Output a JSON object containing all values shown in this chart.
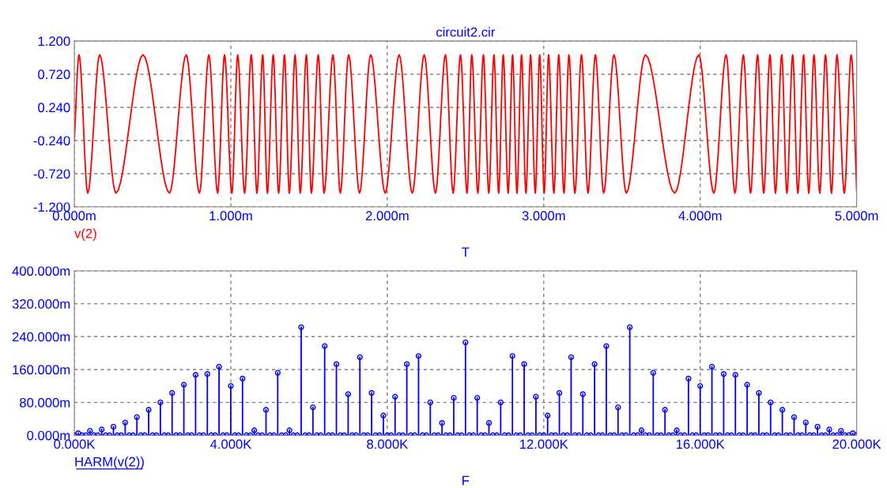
{
  "chart_data": [
    {
      "type": "line",
      "title": "circuit2.cir",
      "xlabel": "T",
      "grid": true,
      "x": [
        0,
        0.03,
        0.086,
        0.162,
        0.266,
        0.439,
        0.608,
        0.715,
        0.8,
        0.86,
        0.916,
        0.96,
        1.007,
        1.044,
        1.088,
        1.131,
        1.167,
        1.204,
        1.234,
        1.271,
        1.306,
        1.343,
        1.374,
        1.411,
        1.444,
        1.483,
        1.515,
        1.559,
        1.596,
        1.653,
        1.7,
        1.753,
        1.823,
        1.894,
        1.987,
        2.076,
        2.16,
        2.236,
        2.308,
        2.372,
        2.421,
        2.468,
        2.51,
        2.54,
        2.579,
        2.614,
        2.649,
        2.682,
        2.712,
        2.741,
        2.773,
        2.801,
        2.829,
        2.858,
        2.886,
        2.916,
        2.946,
        2.974,
        3.003,
        3.031,
        3.065,
        3.096,
        3.129,
        3.161,
        3.199,
        3.241,
        3.283,
        3.33,
        3.383,
        3.449,
        3.528,
        3.65,
        3.837,
        3.991,
        4.087,
        4.166,
        4.222,
        4.276,
        4.322,
        4.367,
        4.406,
        4.446,
        4.481,
        4.521,
        4.554,
        4.591,
        4.624,
        4.661,
        4.694,
        4.727,
        4.764,
        4.801,
        4.839,
        4.874,
        4.921,
        4.965,
        5.0
      ],
      "series": [
        {
          "name": "v(2)",
          "color": "#ff0000",
          "values": [
            -0.24,
            1,
            -1,
            1,
            -1,
            1,
            -1,
            1,
            -1,
            1,
            -1,
            1,
            -1,
            1,
            -1,
            1,
            -1,
            1,
            -1,
            1,
            -1,
            1,
            -1,
            1,
            -1,
            1,
            -1,
            1,
            -1,
            1,
            -1,
            1,
            -1,
            1,
            -1,
            1,
            -1,
            1,
            -1,
            1,
            -1,
            1,
            -1,
            1,
            -1,
            1,
            -1,
            1,
            -1,
            1,
            -1,
            1,
            -1,
            1,
            -1,
            1,
            -1,
            1,
            -1,
            1,
            -1,
            1,
            -1,
            1,
            -1,
            1,
            -1,
            1,
            -1,
            1,
            -1,
            1,
            -1,
            1,
            -1,
            1,
            -1,
            1,
            -1,
            1,
            -1,
            1,
            -1,
            1,
            -1,
            1,
            -1,
            1,
            -1,
            1,
            -1,
            1,
            -1,
            1,
            -1,
            1,
            -0.96
          ]
        }
      ],
      "xlim": [
        0,
        5
      ],
      "xticks": [
        {
          "value": 0,
          "label": "0.000m"
        },
        {
          "value": 1,
          "label": "1.000m"
        },
        {
          "value": 2,
          "label": "2.000m"
        },
        {
          "value": 3,
          "label": "3.000m"
        },
        {
          "value": 4,
          "label": "4.000m"
        },
        {
          "value": 5,
          "label": "5.000m"
        }
      ],
      "ylim": [
        -1.2,
        1.2
      ],
      "yticks": [
        {
          "value": -1.2,
          "label": "-1.200"
        },
        {
          "value": -0.72,
          "label": "-0.720"
        },
        {
          "value": -0.24,
          "label": "-0.240"
        },
        {
          "value": 0.24,
          "label": "0.240"
        },
        {
          "value": 0.72,
          "label": "0.720"
        },
        {
          "value": 1.2,
          "label": "1.200"
        }
      ]
    },
    {
      "type": "lollipop",
      "xlabel": "F",
      "grid": true,
      "marker": "circle",
      "x": [
        0,
        0.1,
        0.2,
        0.3,
        0.4,
        0.5,
        0.6,
        0.7,
        0.8,
        0.9,
        1.0,
        1.1,
        1.2,
        1.3,
        1.4,
        1.5,
        1.6,
        1.7,
        1.8,
        1.9,
        2.0,
        2.1,
        2.2,
        2.3,
        2.4,
        2.5,
        2.6,
        2.7,
        2.8,
        2.9,
        3.0,
        3.1,
        3.2,
        3.3,
        3.4,
        3.5,
        3.6,
        3.7,
        3.8,
        3.9,
        4.0,
        4.1,
        4.2,
        4.3,
        4.4,
        4.5,
        4.6,
        4.7,
        4.8,
        4.9,
        5.0,
        5.1,
        5.2,
        5.3,
        5.4,
        5.5,
        5.6,
        5.7,
        5.8,
        5.9,
        6.0,
        6.1,
        6.2,
        6.3,
        6.4,
        6.5,
        6.6,
        6.7,
        6.8,
        6.9,
        7.0,
        7.1,
        7.2,
        7.3,
        7.4,
        7.5,
        7.6,
        7.7,
        7.8,
        7.9,
        8.0,
        8.1,
        8.2,
        8.3,
        8.4,
        8.5,
        8.6,
        8.7,
        8.8,
        8.9,
        9.0,
        9.1,
        9.2,
        9.3,
        9.4,
        9.5,
        9.6,
        9.7,
        9.8,
        9.9,
        10.0,
        10.1,
        10.2,
        10.3,
        10.4,
        10.5,
        10.6,
        10.7,
        10.8,
        10.9,
        11.0,
        11.1,
        11.2,
        11.3,
        11.4,
        11.5,
        11.6,
        11.7,
        11.8,
        11.9,
        12.0,
        12.1,
        12.2,
        12.3,
        12.4,
        12.5,
        12.6,
        12.7,
        12.8,
        12.9,
        13.0,
        13.1,
        13.2,
        13.3,
        13.4,
        13.5,
        13.6,
        13.7,
        13.8,
        13.9,
        14.0,
        14.1,
        14.2,
        14.3,
        14.4,
        14.5,
        14.6,
        14.7,
        14.8,
        14.9,
        15.0,
        15.1,
        15.2,
        15.3,
        15.4,
        15.5,
        15.6,
        15.7,
        15.8,
        15.9,
        16.0,
        16.1,
        16.2,
        16.3,
        16.4,
        16.5,
        16.6,
        16.7,
        16.8,
        16.9,
        17.0,
        17.1,
        17.2,
        17.3,
        17.4,
        17.5,
        17.6,
        17.7,
        17.8,
        17.9,
        18.0,
        18.1,
        18.2,
        18.3,
        18.4,
        18.5,
        18.6,
        18.7,
        18.8,
        18.9,
        19.0,
        19.1,
        19.2,
        19.3,
        19.4,
        19.5,
        19.6,
        19.7,
        19.8,
        19.9,
        20.0
      ],
      "series": [
        {
          "name": "HARM(v(2))",
          "color": "#0000ff",
          "values": [
            0,
            5,
            0,
            0,
            11,
            0,
            0,
            14,
            0,
            0,
            21,
            0,
            0,
            31,
            0,
            0,
            44,
            0,
            0,
            62,
            0,
            0,
            80,
            0,
            0,
            103,
            0,
            0,
            123,
            0,
            0,
            147,
            0,
            0,
            149,
            0,
            0,
            167,
            0,
            0,
            120,
            0,
            0,
            138,
            0,
            0,
            12,
            0,
            0,
            62,
            0,
            0,
            152,
            0,
            0,
            12,
            0,
            0,
            263,
            0,
            0,
            68,
            0,
            0,
            217,
            0,
            0,
            173,
            0,
            0,
            100,
            0,
            0,
            190,
            0,
            0,
            103,
            0,
            0,
            48,
            0,
            0,
            94,
            0,
            0,
            173,
            0,
            0,
            193,
            0,
            0,
            80,
            0,
            0,
            30,
            0,
            0,
            91,
            0,
            0,
            226,
            0,
            0,
            91,
            0,
            0,
            30,
            0,
            0,
            80,
            0,
            0,
            193,
            0,
            0,
            173,
            0,
            0,
            94,
            0,
            0,
            48,
            0,
            0,
            103,
            0,
            0,
            190,
            0,
            0,
            100,
            0,
            0,
            173,
            0,
            0,
            217,
            0,
            0,
            68,
            0,
            0,
            263,
            0,
            0,
            12,
            0,
            0,
            152,
            0,
            0,
            62,
            0,
            0,
            12,
            0,
            0,
            138,
            0,
            0,
            120,
            0,
            0,
            167,
            0,
            0,
            149,
            0,
            0,
            147,
            0,
            0,
            123,
            0,
            0,
            103,
            0,
            0,
            80,
            0,
            0,
            62,
            0,
            0,
            44,
            0,
            0,
            31,
            0,
            0,
            21,
            0,
            0,
            14,
            0,
            0,
            11,
            0,
            0,
            5,
            0
          ]
        }
      ],
      "xlim": [
        0,
        20
      ],
      "xticks": [
        {
          "value": 0,
          "label": "0.000K"
        },
        {
          "value": 4,
          "label": "4.000K"
        },
        {
          "value": 8,
          "label": "8.000K"
        },
        {
          "value": 12,
          "label": "12.000K"
        },
        {
          "value": 16,
          "label": "16.000K"
        },
        {
          "value": 20,
          "label": "20.000K"
        }
      ],
      "ylim": [
        0,
        400
      ],
      "yticks": [
        {
          "value": 0,
          "label": "0.000m"
        },
        {
          "value": 80,
          "label": "80.000m"
        },
        {
          "value": 160,
          "label": "160.000m"
        },
        {
          "value": 240,
          "label": "240.000m"
        },
        {
          "value": 320,
          "label": "320.000m"
        },
        {
          "value": 400,
          "label": "400.000m"
        }
      ]
    }
  ]
}
